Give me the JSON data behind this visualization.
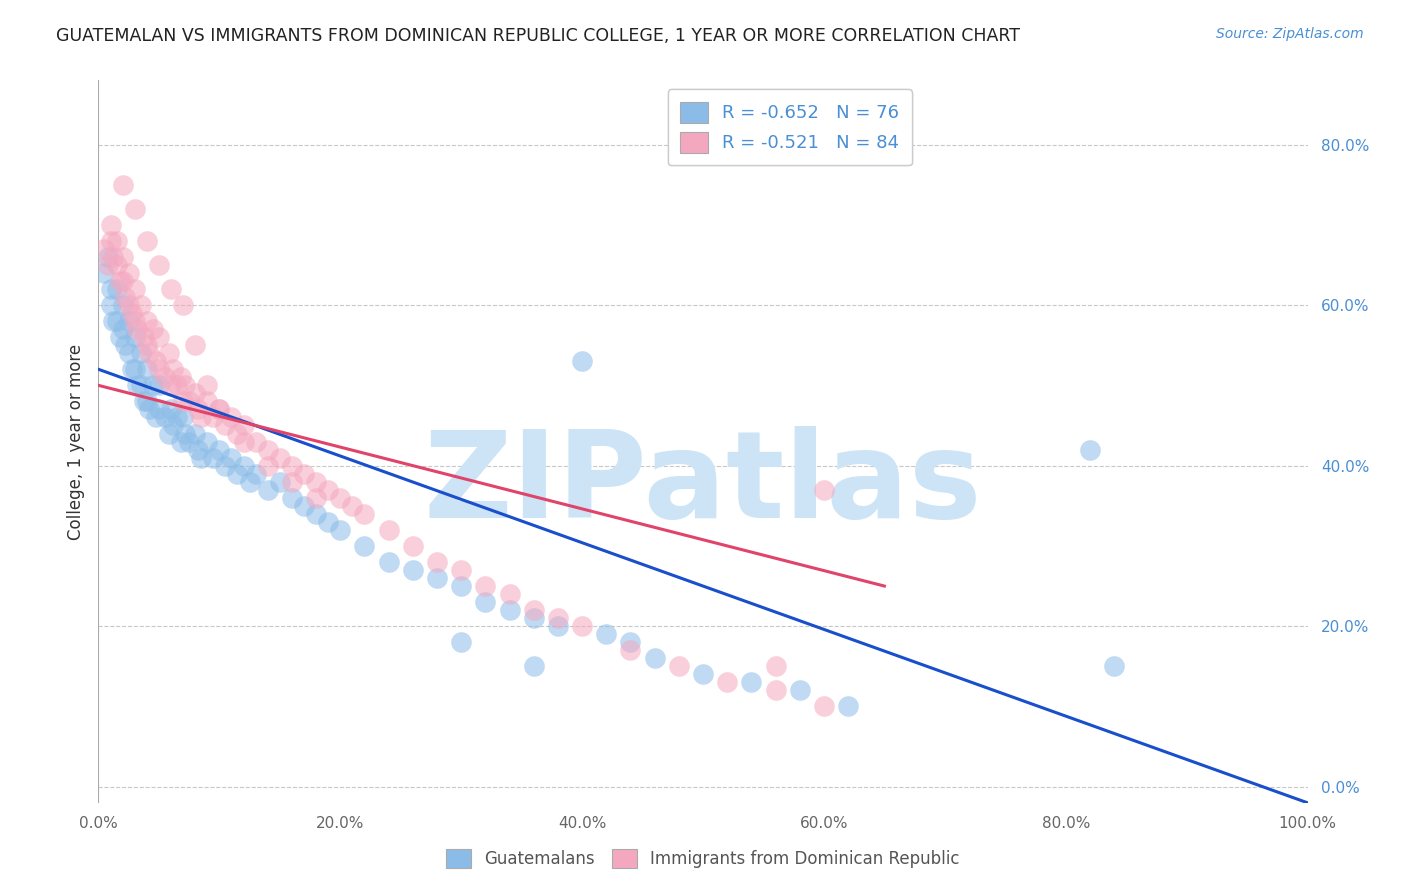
{
  "title": "GUATEMALAN VS IMMIGRANTS FROM DOMINICAN REPUBLIC COLLEGE, 1 YEAR OR MORE CORRELATION CHART",
  "source": "Source: ZipAtlas.com",
  "ylabel": "College, 1 year or more",
  "xlim": [
    0.0,
    1.0
  ],
  "ylim": [
    -0.02,
    0.88
  ],
  "yticks_right": [
    0.0,
    0.2,
    0.4,
    0.6,
    0.8
  ],
  "ytick_labels_right": [
    "0.0%",
    "20.0%",
    "40.0%",
    "60.0%",
    "80.0%"
  ],
  "xtick_vals": [
    0.0,
    0.2,
    0.4,
    0.6,
    0.8,
    1.0
  ],
  "xtick_labels": [
    "0.0%",
    "20.0%",
    "40.0%",
    "60.0%",
    "80.0%",
    "100.0%"
  ],
  "blue_R": -0.652,
  "pink_R": -0.521,
  "blue_N": 76,
  "pink_N": 84,
  "blue_color": "#8bbce8",
  "pink_color": "#f4a8bf",
  "blue_line_color": "#1a4fcc",
  "pink_line_color": "#e0446a",
  "background_color": "#ffffff",
  "grid_color": "#c8c8c8",
  "title_color": "#222222",
  "watermark_text": "ZIPatlas",
  "watermark_color": "#cce4f5",
  "blue_line_x0": 0.0,
  "blue_line_y0": 0.52,
  "blue_line_x1": 1.0,
  "blue_line_y1": -0.02,
  "pink_line_x0": 0.0,
  "pink_line_y0": 0.5,
  "pink_line_x1": 0.65,
  "pink_line_y1": 0.25,
  "blue_scatter_x": [
    0.005,
    0.008,
    0.01,
    0.01,
    0.012,
    0.015,
    0.015,
    0.018,
    0.02,
    0.02,
    0.022,
    0.025,
    0.025,
    0.028,
    0.03,
    0.03,
    0.032,
    0.035,
    0.035,
    0.038,
    0.04,
    0.04,
    0.042,
    0.045,
    0.048,
    0.05,
    0.05,
    0.055,
    0.058,
    0.06,
    0.062,
    0.065,
    0.068,
    0.07,
    0.072,
    0.075,
    0.08,
    0.082,
    0.085,
    0.09,
    0.095,
    0.1,
    0.105,
    0.11,
    0.115,
    0.12,
    0.125,
    0.13,
    0.14,
    0.15,
    0.16,
    0.17,
    0.18,
    0.19,
    0.2,
    0.22,
    0.24,
    0.26,
    0.28,
    0.3,
    0.32,
    0.34,
    0.36,
    0.38,
    0.4,
    0.42,
    0.44,
    0.46,
    0.5,
    0.54,
    0.58,
    0.62,
    0.82,
    0.84,
    0.36,
    0.3
  ],
  "blue_scatter_y": [
    0.64,
    0.66,
    0.62,
    0.6,
    0.58,
    0.62,
    0.58,
    0.56,
    0.6,
    0.57,
    0.55,
    0.58,
    0.54,
    0.52,
    0.56,
    0.52,
    0.5,
    0.54,
    0.5,
    0.48,
    0.52,
    0.48,
    0.47,
    0.5,
    0.46,
    0.5,
    0.47,
    0.46,
    0.44,
    0.47,
    0.45,
    0.46,
    0.43,
    0.46,
    0.44,
    0.43,
    0.44,
    0.42,
    0.41,
    0.43,
    0.41,
    0.42,
    0.4,
    0.41,
    0.39,
    0.4,
    0.38,
    0.39,
    0.37,
    0.38,
    0.36,
    0.35,
    0.34,
    0.33,
    0.32,
    0.3,
    0.28,
    0.27,
    0.26,
    0.25,
    0.23,
    0.22,
    0.21,
    0.2,
    0.53,
    0.19,
    0.18,
    0.16,
    0.14,
    0.13,
    0.12,
    0.1,
    0.42,
    0.15,
    0.15,
    0.18
  ],
  "pink_scatter_x": [
    0.005,
    0.008,
    0.01,
    0.01,
    0.012,
    0.015,
    0.015,
    0.018,
    0.02,
    0.02,
    0.022,
    0.025,
    0.025,
    0.028,
    0.03,
    0.03,
    0.032,
    0.035,
    0.038,
    0.04,
    0.04,
    0.042,
    0.045,
    0.048,
    0.05,
    0.05,
    0.055,
    0.058,
    0.06,
    0.062,
    0.065,
    0.068,
    0.07,
    0.072,
    0.075,
    0.08,
    0.082,
    0.085,
    0.09,
    0.095,
    0.1,
    0.105,
    0.11,
    0.115,
    0.12,
    0.13,
    0.14,
    0.15,
    0.16,
    0.17,
    0.18,
    0.19,
    0.2,
    0.21,
    0.22,
    0.24,
    0.26,
    0.28,
    0.3,
    0.32,
    0.34,
    0.36,
    0.38,
    0.4,
    0.44,
    0.48,
    0.52,
    0.56,
    0.6,
    0.02,
    0.03,
    0.04,
    0.05,
    0.06,
    0.07,
    0.08,
    0.09,
    0.1,
    0.12,
    0.14,
    0.16,
    0.18,
    0.6,
    0.56
  ],
  "pink_scatter_y": [
    0.67,
    0.65,
    0.7,
    0.68,
    0.66,
    0.68,
    0.65,
    0.63,
    0.66,
    0.63,
    0.61,
    0.64,
    0.6,
    0.59,
    0.62,
    0.58,
    0.57,
    0.6,
    0.56,
    0.58,
    0.55,
    0.54,
    0.57,
    0.53,
    0.56,
    0.52,
    0.51,
    0.54,
    0.5,
    0.52,
    0.5,
    0.51,
    0.48,
    0.5,
    0.48,
    0.49,
    0.47,
    0.46,
    0.48,
    0.46,
    0.47,
    0.45,
    0.46,
    0.44,
    0.45,
    0.43,
    0.42,
    0.41,
    0.4,
    0.39,
    0.38,
    0.37,
    0.36,
    0.35,
    0.34,
    0.32,
    0.3,
    0.28,
    0.27,
    0.25,
    0.24,
    0.22,
    0.21,
    0.2,
    0.17,
    0.15,
    0.13,
    0.12,
    0.1,
    0.75,
    0.72,
    0.68,
    0.65,
    0.62,
    0.6,
    0.55,
    0.5,
    0.47,
    0.43,
    0.4,
    0.38,
    0.36,
    0.37,
    0.15
  ]
}
